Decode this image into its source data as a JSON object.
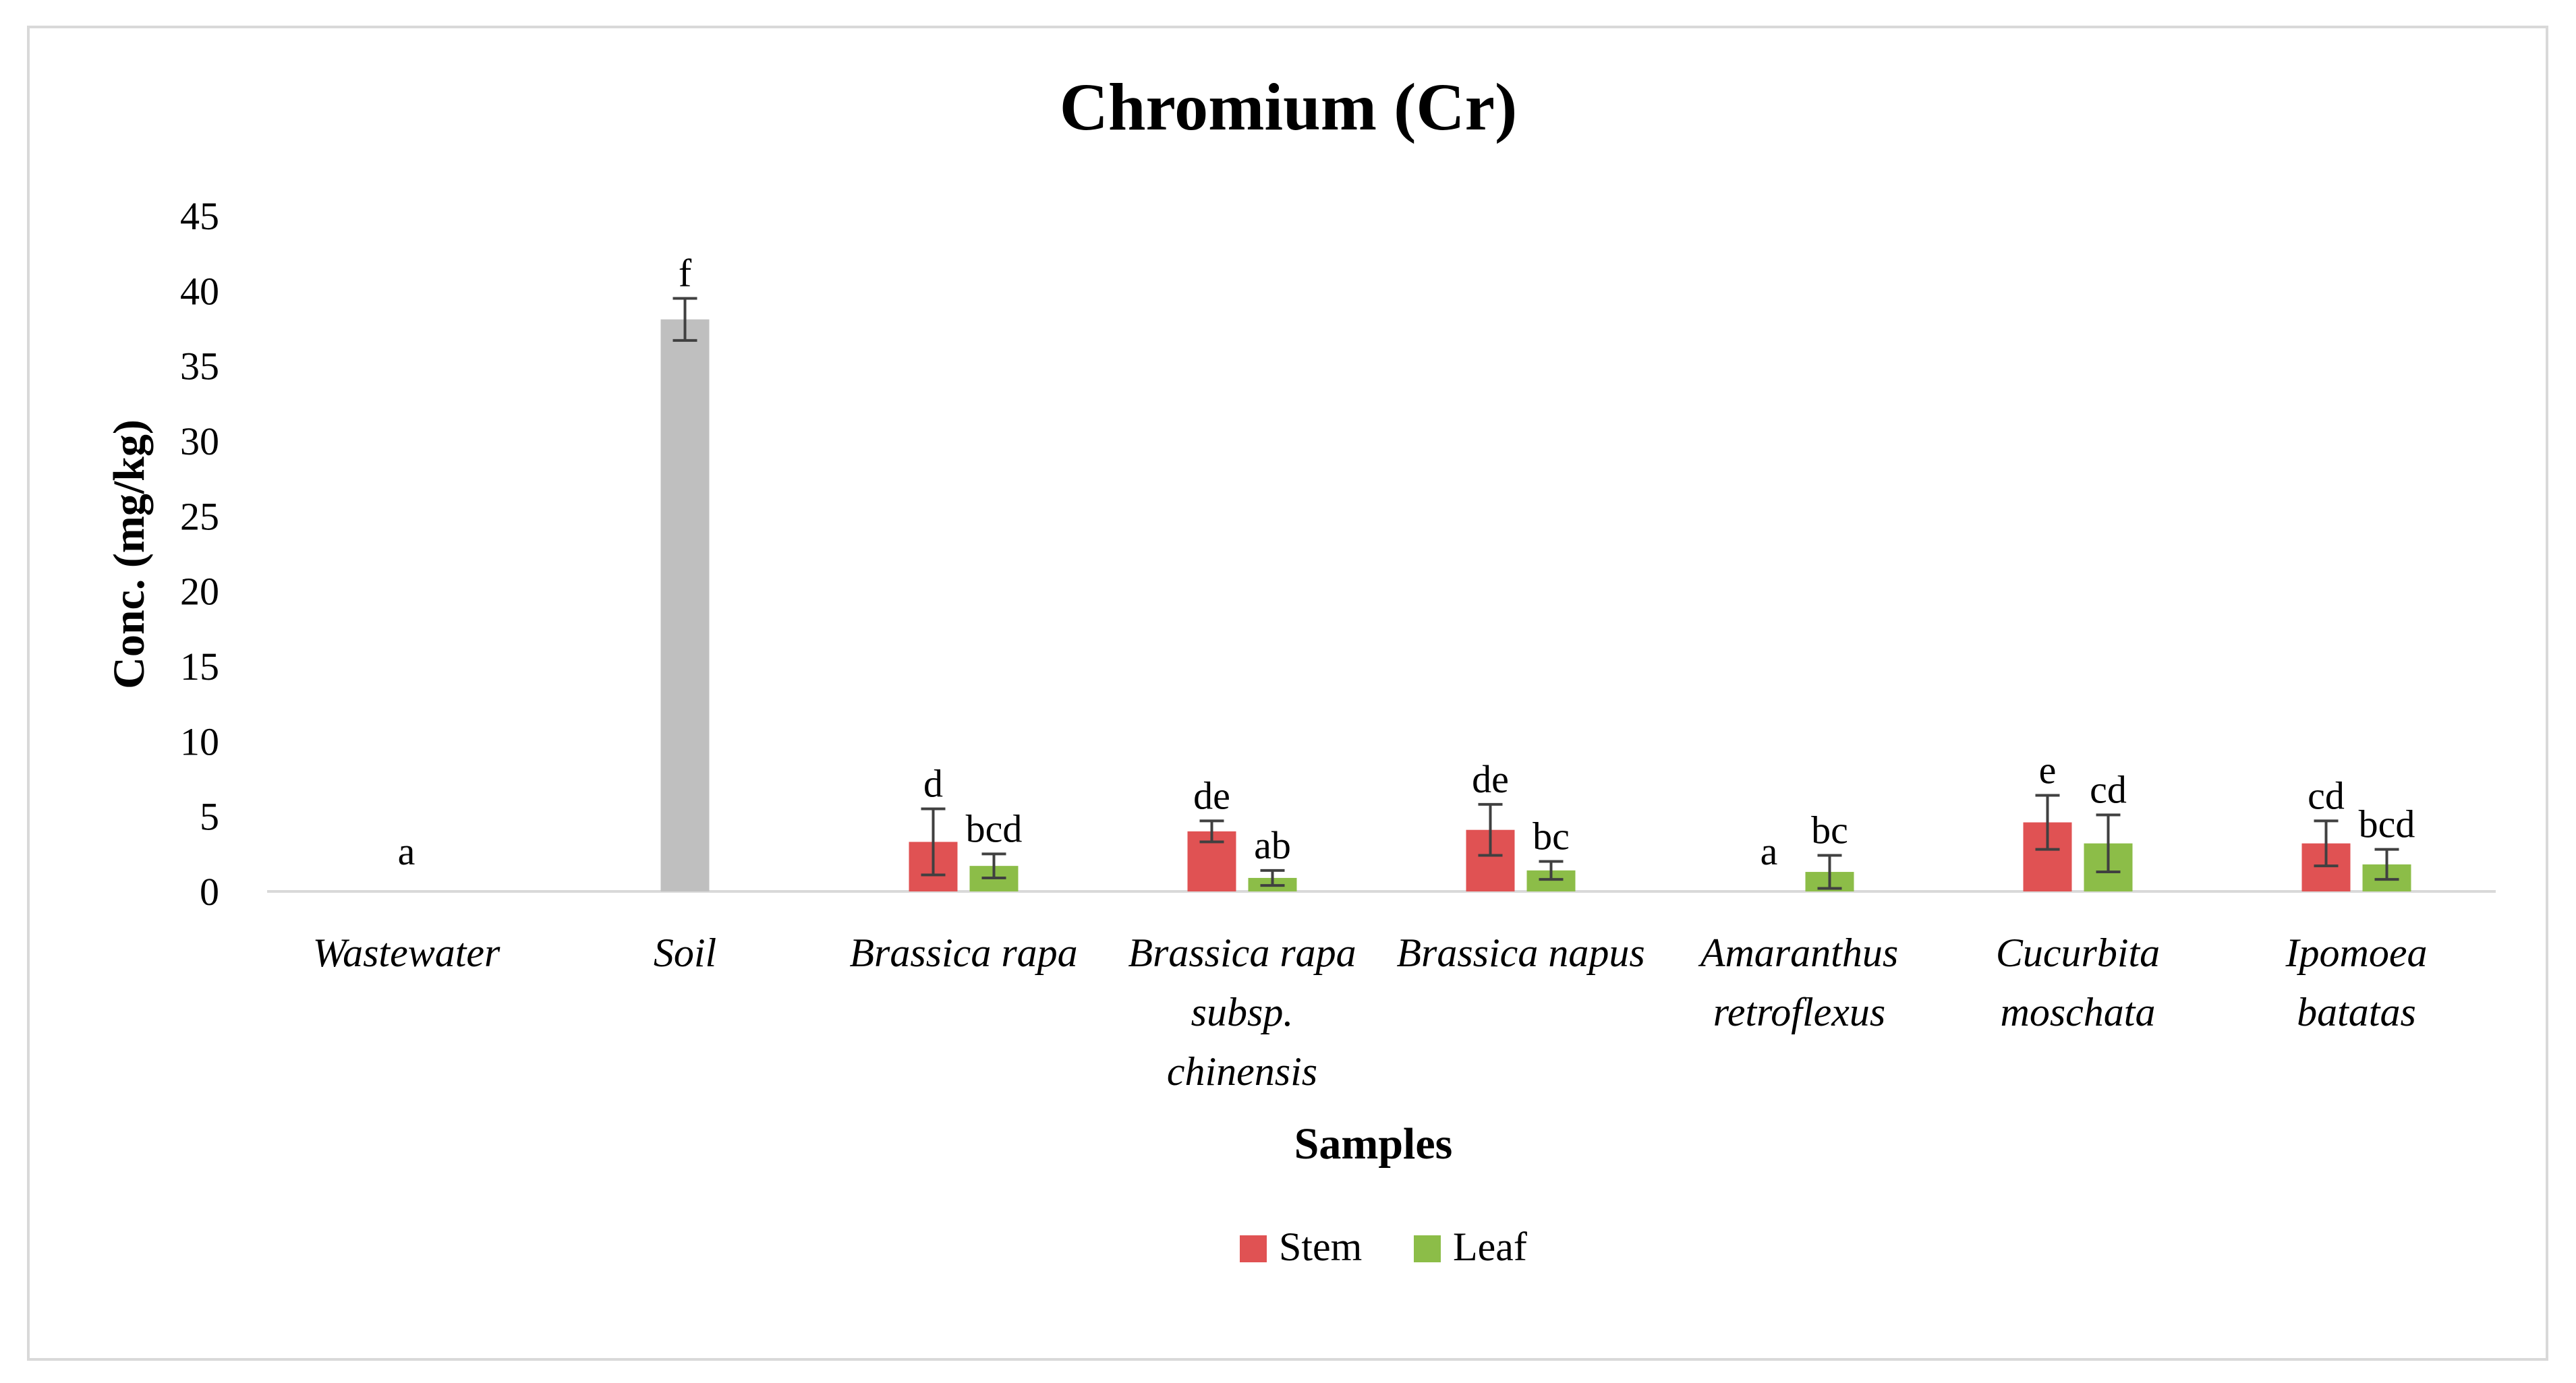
{
  "chart_data": {
    "type": "bar",
    "title": "Chromium (Cr)",
    "xlabel": "Samples",
    "ylabel": "Conc. (mg/kg)",
    "ylim": [
      0,
      45
    ],
    "yticks": [
      "0",
      "5",
      "10",
      "15",
      "20",
      "25",
      "30",
      "35",
      "40",
      "45"
    ],
    "grid": false,
    "legend_position": "bottom",
    "categories": [
      [
        "Wastewater"
      ],
      [
        "Soil"
      ],
      [
        "Brassica rapa"
      ],
      [
        "Brassica rapa",
        "subsp.",
        "chinensis"
      ],
      [
        "Brassica napus"
      ],
      [
        "Amaranthus",
        "retroflexus"
      ],
      [
        "Cucurbita",
        "moschata"
      ],
      [
        "Ipomoea",
        "batatas"
      ]
    ],
    "sample_bars": [
      {
        "category_index": 0,
        "value": 0,
        "error": 0,
        "letter": "a",
        "color": "#bfbfbf"
      },
      {
        "category_index": 1,
        "value": 38.1,
        "error": 1.4,
        "letter": "f",
        "color": "#bfbfbf"
      }
    ],
    "series": [
      {
        "name": "Stem",
        "color": "#e05253",
        "values": [
          null,
          null,
          3.3,
          4.0,
          4.1,
          0,
          4.6,
          3.2
        ],
        "errors": [
          null,
          null,
          2.2,
          0.7,
          1.7,
          0,
          1.8,
          1.5
        ],
        "letters": [
          null,
          null,
          "d",
          "de",
          "de",
          "a",
          "e",
          "cd"
        ]
      },
      {
        "name": "Leaf",
        "color": "#8cbd48",
        "values": [
          null,
          null,
          1.7,
          0.9,
          1.4,
          1.3,
          3.2,
          1.8
        ],
        "errors": [
          null,
          null,
          0.8,
          0.5,
          0.6,
          1.1,
          1.9,
          1.0
        ],
        "letters": [
          null,
          null,
          "bcd",
          "ab",
          "bc",
          "bc",
          "cd",
          "bcd"
        ]
      }
    ]
  }
}
